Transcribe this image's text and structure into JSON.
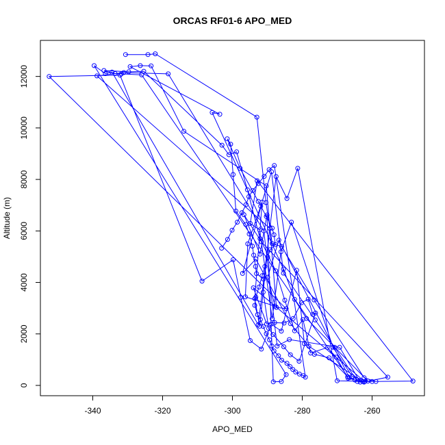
{
  "chart_data": {
    "type": "line",
    "title": "ORCAS RF01-6 APO_MED",
    "xlabel": "APO_MED",
    "ylabel": "Altitude (m)",
    "xlim": [
      -355,
      -245
    ],
    "ylim": [
      -400,
      13400
    ],
    "x_ticks": [
      -340,
      -320,
      -300,
      -280,
      -260
    ],
    "y_ticks": [
      0,
      2000,
      4000,
      6000,
      8000,
      10000,
      12000
    ],
    "grid": false,
    "marker": "open-circle",
    "line_color": "#0000ff",
    "series": [
      {
        "x": [
          -330.6,
          -324.2,
          -322.1,
          -293.0,
          -290.4,
          -288.6,
          -285.9,
          -276.6,
          -262.3,
          -258.9,
          -262.6,
          -278.1,
          -283.4,
          -293.3,
          -297.1,
          -291.5,
          -293.6,
          -292.2,
          -289.3,
          -338.8,
          -331.1,
          -318.4,
          -291.0,
          -287.2,
          -283.7,
          -269.3,
          -263.4,
          -266.5,
          -286.7,
          -289.9,
          -287.8,
          -296.3,
          -295.6,
          -291.9,
          -288.8,
          -285.4,
          -276.3,
          -270.7,
          -264.2,
          -262.3,
          -255.5,
          -291.7,
          -296.7,
          -292.1,
          -290.1,
          -288.3,
          -286.0,
          -284.6,
          -339.6,
          -336.4,
          -334.5,
          -292.6,
          -287.5,
          -284.4,
          -281.3,
          -270.0,
          -260.0,
          -248.3,
          -292.9,
          -294.9,
          -292.2,
          -288.6,
          -286.1,
          -283.1,
          -271.2,
          -265.7,
          -261.2,
          -278.8,
          -282.2,
          -285.4,
          -305.8,
          -303.6,
          -329.3,
          -326.4,
          -323.3,
          -313.9,
          -290.3,
          -287.4,
          -284.6,
          -352.5,
          -332.2,
          -308.7,
          -299.8,
          -297.6,
          -294.9,
          -291.7,
          -288.9,
          -286.0,
          -281.6,
          -279.4,
          -276.5,
          -272.3,
          -267.0,
          -326.0,
          -331.8,
          -333.6,
          -336.8,
          -329.7,
          -325.4,
          -303.0,
          -301.0,
          -298.8,
          -295.7,
          -292.1,
          -287.6,
          -285.0,
          -282.2,
          -279.8,
          -277.6,
          -272.8,
          -270.3,
          -266.9,
          -264.9,
          -262.1,
          -294.0,
          -290.2,
          -287.9,
          -285.2,
          -282.6,
          -280.2,
          -278.3,
          -277.0,
          -276.2,
          -280.9,
          -283.4,
          -285.3,
          -288.4,
          -289.6,
          -291.2,
          -291.1,
          -293.1,
          -293.4,
          -293.9,
          -294.3,
          -295.2,
          -296.2,
          -299.0,
          -299.8,
          -300.5,
          -301.5,
          -297.8,
          -292.6,
          -290.3,
          -288.6,
          -288.1,
          -287.7,
          -289.2,
          -289.9,
          -290.7,
          -291.5,
          -292.4,
          -293.3,
          -293.6,
          -292.8,
          -292.0,
          -291.2,
          -290.3,
          -289.4,
          -288.7,
          -288.1,
          -286.8,
          -285.9,
          -284.4,
          -283.5,
          -282.7,
          -281.9,
          -280.8,
          -279.7,
          -279.1,
          -288.0,
          -289.5,
          -290.9,
          -292.6,
          -294.2,
          -295.3,
          -296.1,
          -297.3,
          -298.6,
          -300.1,
          -301.4,
          -303.1
        ],
        "y": [
          12850,
          12850,
          12880,
          10420,
          7100,
          5510,
          5390,
          3320,
          300,
          150,
          150,
          1520,
          2400,
          4910,
          4350,
          7120,
          3370,
          2300,
          6100,
          12020,
          12150,
          12100,
          6000,
          1530,
          1780,
          1480,
          130,
          300,
          5640,
          4200,
          3080,
          3440,
          5500,
          6960,
          8300,
          4360,
          2540,
          1480,
          150,
          130,
          320,
          5580,
          6630,
          5100,
          6620,
          140,
          150,
          420,
          12420,
          12110,
          12170,
          2360,
          8110,
          7260,
          8430,
          180,
          150,
          170,
          7950,
          6290,
          6040,
          2590,
          5190,
          6340,
          1480,
          350,
          170,
          2600,
          3340,
          4520,
          10600,
          10530,
          12380,
          12420,
          12410,
          9870,
          7750,
          3030,
          2980,
          12000,
          12050,
          4050,
          4880,
          3420,
          1740,
          1410,
          2380,
          2110,
          4470,
          1620,
          1210,
          1070,
          340,
          12060,
          12100,
          12110,
          12230,
          12180,
          12200,
          9330,
          8960,
          9070,
          7600,
          5700,
          4450,
          3310,
          2120,
          2560,
          1260,
          1470,
          1100,
          280,
          210,
          150,
          3790,
          2390,
          2440,
          2420,
          2600,
          3210,
          3350,
          2760,
          2810,
          940,
          1190,
          1500,
          1980,
          2210,
          3620,
          4130,
          4340,
          4620,
          5060,
          5410,
          5880,
          6250,
          6770,
          8190,
          9370,
          9580,
          8430,
          7150,
          6560,
          6110,
          5850,
          5470,
          5270,
          4990,
          4620,
          4260,
          3820,
          3430,
          3110,
          2750,
          2560,
          2290,
          2010,
          1770,
          1530,
          1340,
          1150,
          980,
          860,
          730,
          620,
          520,
          440,
          380,
          320,
          8540,
          8380,
          8120,
          7840,
          7570,
          7330,
          7020,
          6710,
          6340,
          6030,
          5670,
          5330
        ]
      }
    ]
  }
}
